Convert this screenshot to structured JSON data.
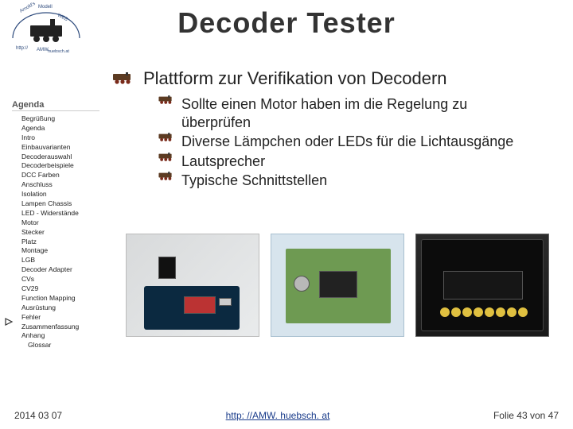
{
  "title": "Decoder Tester",
  "main_bullet": "Plattform zur Verifikation von Decodern",
  "sub_bullets": [
    "Sollte einen Motor haben im die Regelung zu überprüfen",
    "Diverse Lämpchen oder LEDs für die Lichtausgänge",
    "Lautsprecher",
    "Typische Schnittstellen"
  ],
  "agenda": {
    "label": "Agenda",
    "items": [
      "Begrüßung",
      "Agenda",
      "Intro",
      "Einbauvarianten",
      "Decoderauswahl",
      "Decoderbeispiele",
      "DCC Farben",
      "Anschluss",
      "Isolation",
      "Lampen Chassis",
      "LED - Widerstände",
      "Motor",
      "Stecker",
      "Platz",
      "Montage",
      "LGB",
      "Decoder Adapter",
      "CVs",
      "CV29",
      "Function Mapping",
      "Ausrüstung",
      "Fehler",
      "Zusammenfassung",
      "Anhang"
    ],
    "indent_items": [
      "Glossar"
    ],
    "current_index": 20
  },
  "footer": {
    "date": "2014 03 07",
    "url": "http: //AMW. huebsch. at",
    "page_label": "Folie 43 von 47"
  },
  "colors": {
    "title": "#333333",
    "text": "#222222",
    "link": "#1a3c8b",
    "logo": "#2d4a7c"
  }
}
